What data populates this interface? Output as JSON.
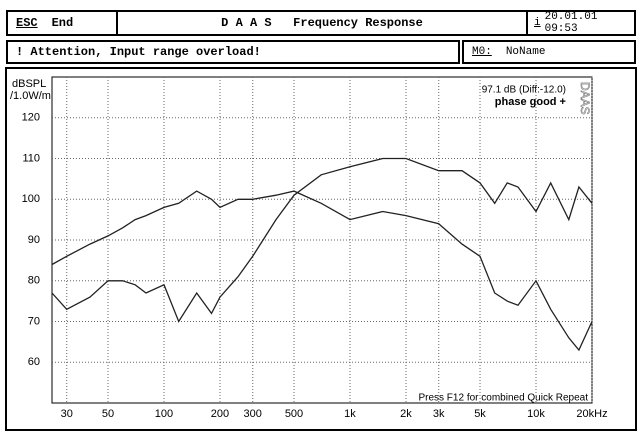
{
  "header": {
    "key": "ESC",
    "key_label": "End",
    "title": "D A A S   Frequency Response",
    "info_key": "i",
    "datetime": "20.01.01 09:53"
  },
  "status": {
    "message": "! Attention, Input range overload!",
    "memory_key": "M0:",
    "memory_name": "NoName"
  },
  "chart_data": {
    "type": "line",
    "y_label_line1": "dBSPL",
    "y_label_line2": "/1.0W/m",
    "annotations": [
      "97.1 dB (Diff:-12.0)",
      "phase good +",
      "Press F12 for combined Quick Repeat",
      "DAAS"
    ],
    "x": [
      25,
      30,
      40,
      50,
      60,
      70,
      80,
      100,
      120,
      150,
      180,
      200,
      250,
      300,
      400,
      500,
      700,
      1000,
      1500,
      2000,
      3000,
      4000,
      5000,
      6000,
      7000,
      8000,
      10000,
      12000,
      15000,
      17000,
      20000
    ],
    "series": [
      {
        "color": "#222222",
        "values": [
          84,
          86,
          89,
          91,
          93,
          95,
          96,
          98,
          99,
          102,
          100,
          98,
          100,
          100,
          101,
          102,
          99,
          95,
          97,
          96,
          94,
          89,
          86,
          77,
          75,
          74,
          80,
          73,
          66,
          63,
          70
        ]
      },
      {
        "color": "#222222",
        "values": [
          77,
          73,
          76,
          80,
          80,
          79,
          77,
          79,
          70,
          77,
          72,
          76,
          81,
          86,
          95,
          101,
          106,
          108,
          110,
          110,
          107,
          107,
          104,
          99,
          104,
          103,
          97,
          104,
          95,
          103,
          99
        ]
      }
    ],
    "xlim": [
      25,
      20000
    ],
    "ylim": [
      50,
      130
    ],
    "log_x": true,
    "grid": true,
    "xticks": [
      30,
      50,
      100,
      200,
      300,
      500,
      {
        "value": 1000,
        "label": "1k"
      },
      {
        "value": 2000,
        "label": "2k"
      },
      {
        "value": 3000,
        "label": "3k"
      },
      {
        "value": 5000,
        "label": "5k"
      },
      {
        "value": 10000,
        "label": "10k"
      },
      {
        "value": 20000,
        "label": "20kHz"
      }
    ],
    "yticks": [
      60,
      70,
      80,
      90,
      100,
      110,
      120
    ]
  }
}
